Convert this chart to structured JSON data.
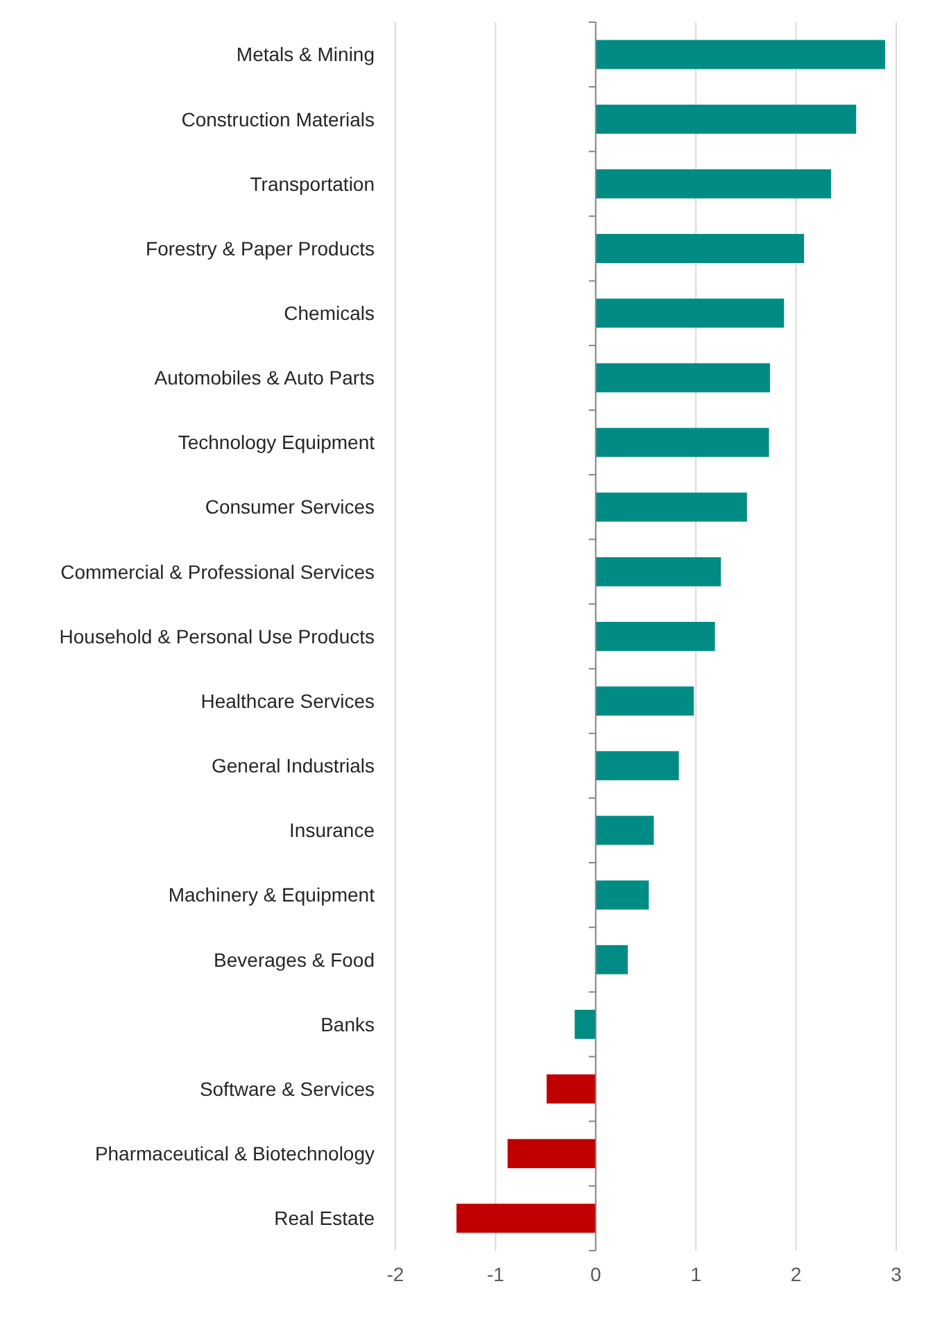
{
  "chart_data": {
    "type": "bar",
    "orientation": "horizontal",
    "categories": [
      "Metals & Mining",
      "Construction Materials",
      "Transportation",
      "Forestry & Paper Products",
      "Chemicals",
      "Automobiles & Auto Parts",
      "Technology Equipment",
      "Consumer Services",
      "Commercial & Professional Services",
      "Household & Personal Use Products",
      "Healthcare Services",
      "General Industrials",
      "Insurance",
      "Machinery & Equipment",
      "Beverages & Food",
      "Banks",
      "Software & Services",
      "Pharmaceutical & Biotechnology",
      "Real Estate"
    ],
    "values": [
      2.89,
      2.6,
      2.35,
      2.08,
      1.88,
      1.74,
      1.73,
      1.51,
      1.25,
      1.19,
      0.98,
      0.83,
      0.58,
      0.53,
      0.32,
      -0.21,
      -0.49,
      -0.88,
      -1.39
    ],
    "colors": [
      "#008c84",
      "#008c84",
      "#008c84",
      "#008c84",
      "#008c84",
      "#008c84",
      "#008c84",
      "#008c84",
      "#008c84",
      "#008c84",
      "#008c84",
      "#008c84",
      "#008c84",
      "#008c84",
      "#008c84",
      "#008c84",
      "#c00000",
      "#c00000",
      "#c00000"
    ],
    "xlim": [
      -2,
      3
    ],
    "xticks": [
      -2,
      -1,
      0,
      1,
      2,
      3
    ],
    "grid": "x"
  }
}
